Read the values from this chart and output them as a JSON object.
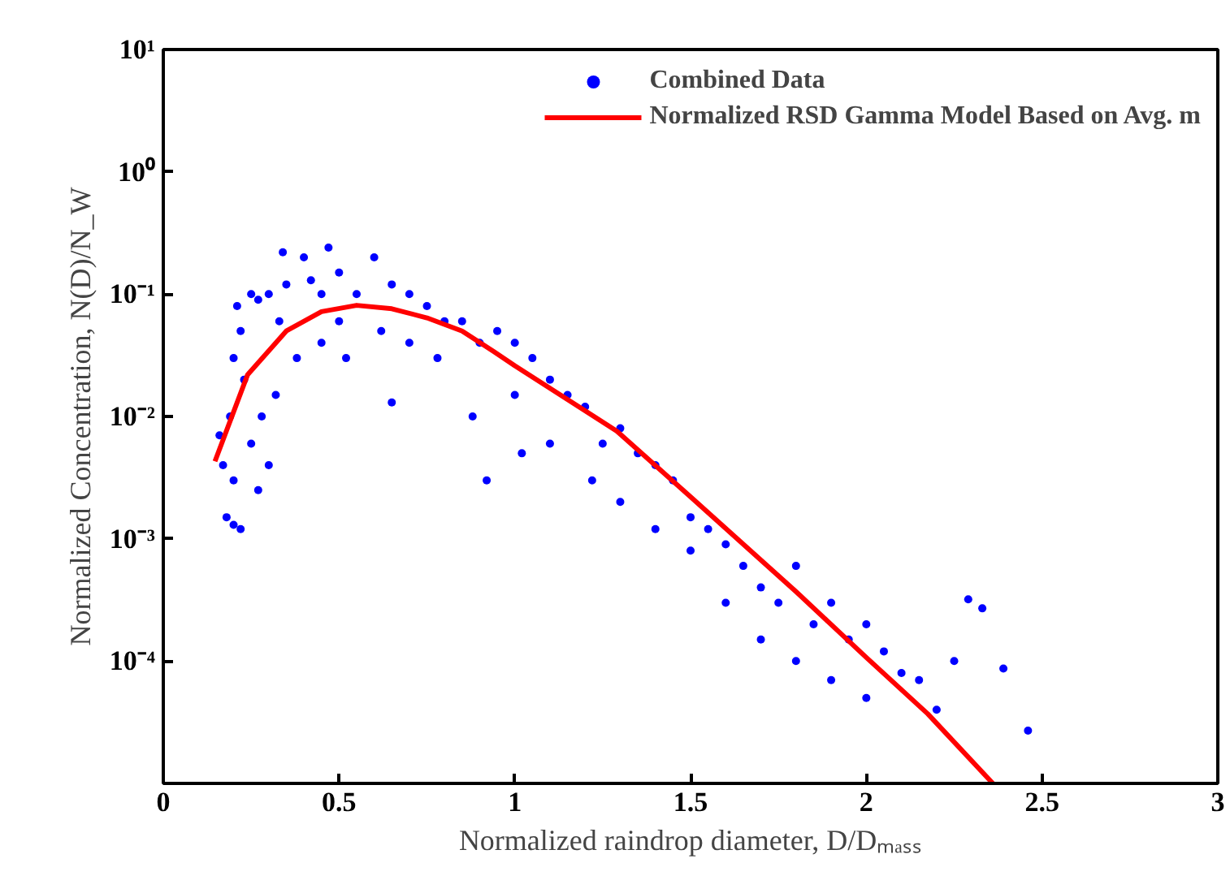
{
  "chart_data": {
    "type": "scatter",
    "xlabel": "Normalized raindrop diameter, D/Dₘₐₛₛ",
    "ylabel": "Normalized Concentration, N(D)/N_W",
    "log": "y",
    "grid": false,
    "legend": "top right",
    "xlim": [
      0,
      3
    ],
    "xticks": [
      0,
      0.5,
      1,
      1.5,
      2,
      2.5,
      3
    ],
    "ylim": [
      1e-05,
      10
    ],
    "yticks": [
      {
        "value": 1e-05,
        "label": null
      },
      {
        "value": 0.0001,
        "label": "10⁻⁴"
      },
      {
        "value": 0.001,
        "label": "10⁻³"
      },
      {
        "value": 0.01,
        "label": "10⁻²"
      },
      {
        "value": 0.1,
        "label": "10⁻¹"
      },
      {
        "value": 1,
        "label": "10⁰"
      },
      {
        "value": 10,
        "label": "10¹"
      }
    ],
    "series": [
      {
        "name": "Combined Data",
        "color": "#0000ff",
        "marker": "circle",
        "x": [
          0.16,
          0.17,
          0.18,
          0.2,
          0.22,
          0.2,
          0.19,
          0.2,
          0.21,
          0.22,
          0.23,
          0.25,
          0.27,
          0.28,
          0.3,
          0.3,
          0.27,
          0.25,
          0.32,
          0.33,
          0.35,
          0.34,
          0.38,
          0.4,
          0.42,
          0.45,
          0.45,
          0.47,
          0.5,
          0.5,
          0.52,
          0.55,
          0.6,
          0.62,
          0.65,
          0.65,
          0.7,
          0.7,
          0.75,
          0.78,
          0.8,
          0.85,
          0.88,
          0.9,
          0.92,
          0.95,
          1.0,
          1.0,
          1.02,
          1.05,
          1.1,
          1.1,
          1.15,
          1.2,
          1.22,
          1.25,
          1.3,
          1.3,
          1.35,
          1.4,
          1.4,
          1.45,
          1.5,
          1.5,
          1.55,
          1.6,
          1.6,
          1.65,
          1.7,
          1.7,
          1.75,
          1.8,
          1.8,
          1.85,
          1.9,
          1.9,
          1.95,
          2.0,
          2.0,
          2.05,
          2.1,
          2.15,
          2.2,
          2.25,
          2.29,
          2.33,
          2.39,
          2.46
        ],
        "values": [
          0.007,
          0.004,
          0.0015,
          0.0013,
          0.0012,
          0.003,
          0.01,
          0.03,
          0.08,
          0.05,
          0.02,
          0.006,
          0.0025,
          0.01,
          0.004,
          0.1,
          0.09,
          0.1,
          0.015,
          0.06,
          0.12,
          0.22,
          0.03,
          0.2,
          0.13,
          0.1,
          0.04,
          0.24,
          0.15,
          0.06,
          0.03,
          0.1,
          0.2,
          0.05,
          0.12,
          0.013,
          0.1,
          0.04,
          0.08,
          0.03,
          0.06,
          0.06,
          0.01,
          0.04,
          0.003,
          0.05,
          0.04,
          0.015,
          0.005,
          0.03,
          0.02,
          0.006,
          0.015,
          0.012,
          0.003,
          0.006,
          0.008,
          0.002,
          0.005,
          0.004,
          0.0012,
          0.003,
          0.0015,
          0.0008,
          0.0012,
          0.0009,
          0.0003,
          0.0006,
          0.0004,
          0.00015,
          0.0003,
          0.0006,
          0.0001,
          0.0002,
          0.0003,
          7e-05,
          0.00015,
          0.0002,
          5e-05,
          0.00012,
          8e-05,
          7e-05,
          4e-05,
          0.0001,
          0.00032,
          0.00027,
          8.7e-05,
          2.7e-05
        ]
      },
      {
        "name": "Normalized RSD Gamma Model Based on Avg. m",
        "color": "#ff0000",
        "type": "line",
        "marker": "none",
        "x": [
          0.147,
          0.24,
          0.35,
          0.45,
          0.55,
          0.65,
          0.75,
          0.85,
          0.94,
          1.0,
          1.29,
          1.5,
          1.8,
          2.0,
          2.175,
          2.36
        ],
        "values": [
          0.0043,
          0.022,
          0.05,
          0.072,
          0.081,
          0.076,
          0.064,
          0.05,
          0.034,
          0.026,
          0.0076,
          0.0022,
          0.00037,
          0.000107,
          3.7e-05,
          1e-05
        ]
      }
    ]
  }
}
